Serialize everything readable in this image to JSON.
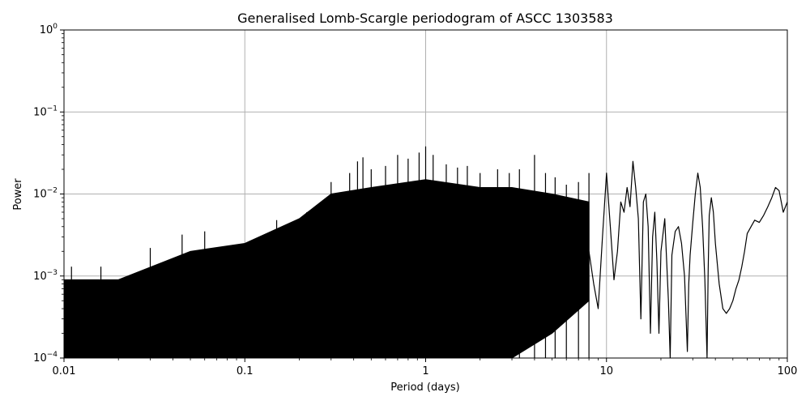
{
  "chart_data": {
    "type": "line",
    "title": "Generalised Lomb-Scargle periodogram of ASCC 1303583",
    "xlabel": "Period (days)",
    "ylabel": "Power",
    "xscale": "log",
    "yscale": "log",
    "xlim": [
      0.01,
      100
    ],
    "ylim": [
      0.0001,
      1
    ],
    "grid": true,
    "x_ticks": [
      {
        "value": 0.01,
        "label": "0.01"
      },
      {
        "value": 0.1,
        "label": "0.1"
      },
      {
        "value": 1,
        "label": "1"
      },
      {
        "value": 10,
        "label": "10"
      },
      {
        "value": 100,
        "label": "100"
      }
    ],
    "y_ticks": [
      {
        "value": 0.0001,
        "base": "10",
        "exp": "−4"
      },
      {
        "value": 0.001,
        "base": "10",
        "exp": "−3"
      },
      {
        "value": 0.01,
        "base": "10",
        "exp": "−2"
      },
      {
        "value": 0.1,
        "base": "10",
        "exp": "−1"
      },
      {
        "value": 1,
        "base": "10",
        "exp": "0"
      }
    ],
    "line_color": "#000000",
    "envelope": {
      "period": [
        0.01,
        0.02,
        0.05,
        0.1,
        0.2,
        0.3,
        0.5,
        1,
        2,
        3,
        5,
        8
      ],
      "max_power": [
        0.0009,
        0.0009,
        0.002,
        0.0025,
        0.005,
        0.01,
        0.012,
        0.015,
        0.012,
        0.012,
        0.01,
        0.008
      ],
      "min_power": [
        0.0001,
        0.0001,
        0.0001,
        0.0001,
        0.0001,
        0.0001,
        0.0001,
        0.0001,
        0.0001,
        0.0001,
        0.0002,
        0.0005
      ]
    },
    "spikes": [
      {
        "period": 0.011,
        "power": 0.0013
      },
      {
        "period": 0.016,
        "power": 0.0013
      },
      {
        "period": 0.03,
        "power": 0.0022
      },
      {
        "period": 0.045,
        "power": 0.0032
      },
      {
        "period": 0.06,
        "power": 0.0035
      },
      {
        "period": 0.15,
        "power": 0.0048
      },
      {
        "period": 0.22,
        "power": 0.006
      },
      {
        "period": 0.3,
        "power": 0.014
      },
      {
        "period": 0.38,
        "power": 0.018
      },
      {
        "period": 0.42,
        "power": 0.025
      },
      {
        "period": 0.45,
        "power": 0.028
      },
      {
        "period": 0.5,
        "power": 0.02
      },
      {
        "period": 0.6,
        "power": 0.022
      },
      {
        "period": 0.7,
        "power": 0.03
      },
      {
        "period": 0.8,
        "power": 0.027
      },
      {
        "period": 0.92,
        "power": 0.032
      },
      {
        "period": 1.0,
        "power": 0.038
      },
      {
        "period": 1.1,
        "power": 0.03
      },
      {
        "period": 1.3,
        "power": 0.023
      },
      {
        "period": 1.5,
        "power": 0.021
      },
      {
        "period": 1.7,
        "power": 0.022
      },
      {
        "period": 2.0,
        "power": 0.018
      },
      {
        "period": 2.5,
        "power": 0.02
      },
      {
        "period": 2.9,
        "power": 0.018
      },
      {
        "period": 3.3,
        "power": 0.02
      },
      {
        "period": 4.0,
        "power": 0.03
      },
      {
        "period": 4.6,
        "power": 0.018
      },
      {
        "period": 5.2,
        "power": 0.016
      },
      {
        "period": 6.0,
        "power": 0.013
      },
      {
        "period": 7.0,
        "power": 0.014
      },
      {
        "period": 8.0,
        "power": 0.018
      }
    ],
    "smooth": {
      "period": [
        8,
        8.5,
        9,
        9.5,
        10,
        10.5,
        11,
        11.5,
        12,
        12.5,
        13,
        13.5,
        14,
        14.5,
        15,
        15.5,
        16,
        16.5,
        17,
        17.5,
        18,
        18.5,
        19,
        19.5,
        20,
        21,
        22,
        22.5,
        23,
        24,
        25,
        26,
        27,
        28,
        28.5,
        29,
        30,
        31,
        32,
        33,
        34,
        35,
        36,
        36.5,
        37,
        38,
        39,
        40,
        42,
        44,
        46,
        48,
        50,
        52,
        54,
        56,
        58,
        60,
        63,
        66,
        70,
        74,
        78,
        82,
        86,
        90,
        95,
        100
      ],
      "power": [
        0.002,
        0.0008,
        0.0004,
        0.003,
        0.018,
        0.004,
        0.0009,
        0.002,
        0.008,
        0.006,
        0.012,
        0.007,
        0.025,
        0.012,
        0.005,
        0.0003,
        0.008,
        0.01,
        0.004,
        0.0002,
        0.003,
        0.006,
        0.0015,
        0.0002,
        0.002,
        0.005,
        0.0005,
        0.0001,
        0.0018,
        0.0035,
        0.004,
        0.0025,
        0.001,
        0.00012,
        0.0008,
        0.0018,
        0.0045,
        0.01,
        0.018,
        0.012,
        0.004,
        0.0009,
        0.0001,
        0.0012,
        0.0055,
        0.009,
        0.006,
        0.0025,
        0.0008,
        0.0004,
        0.00035,
        0.0004,
        0.0005,
        0.0007,
        0.0009,
        0.0013,
        0.002,
        0.0033,
        0.004,
        0.0048,
        0.0045,
        0.0055,
        0.007,
        0.009,
        0.012,
        0.011,
        0.006,
        0.008
      ]
    }
  }
}
